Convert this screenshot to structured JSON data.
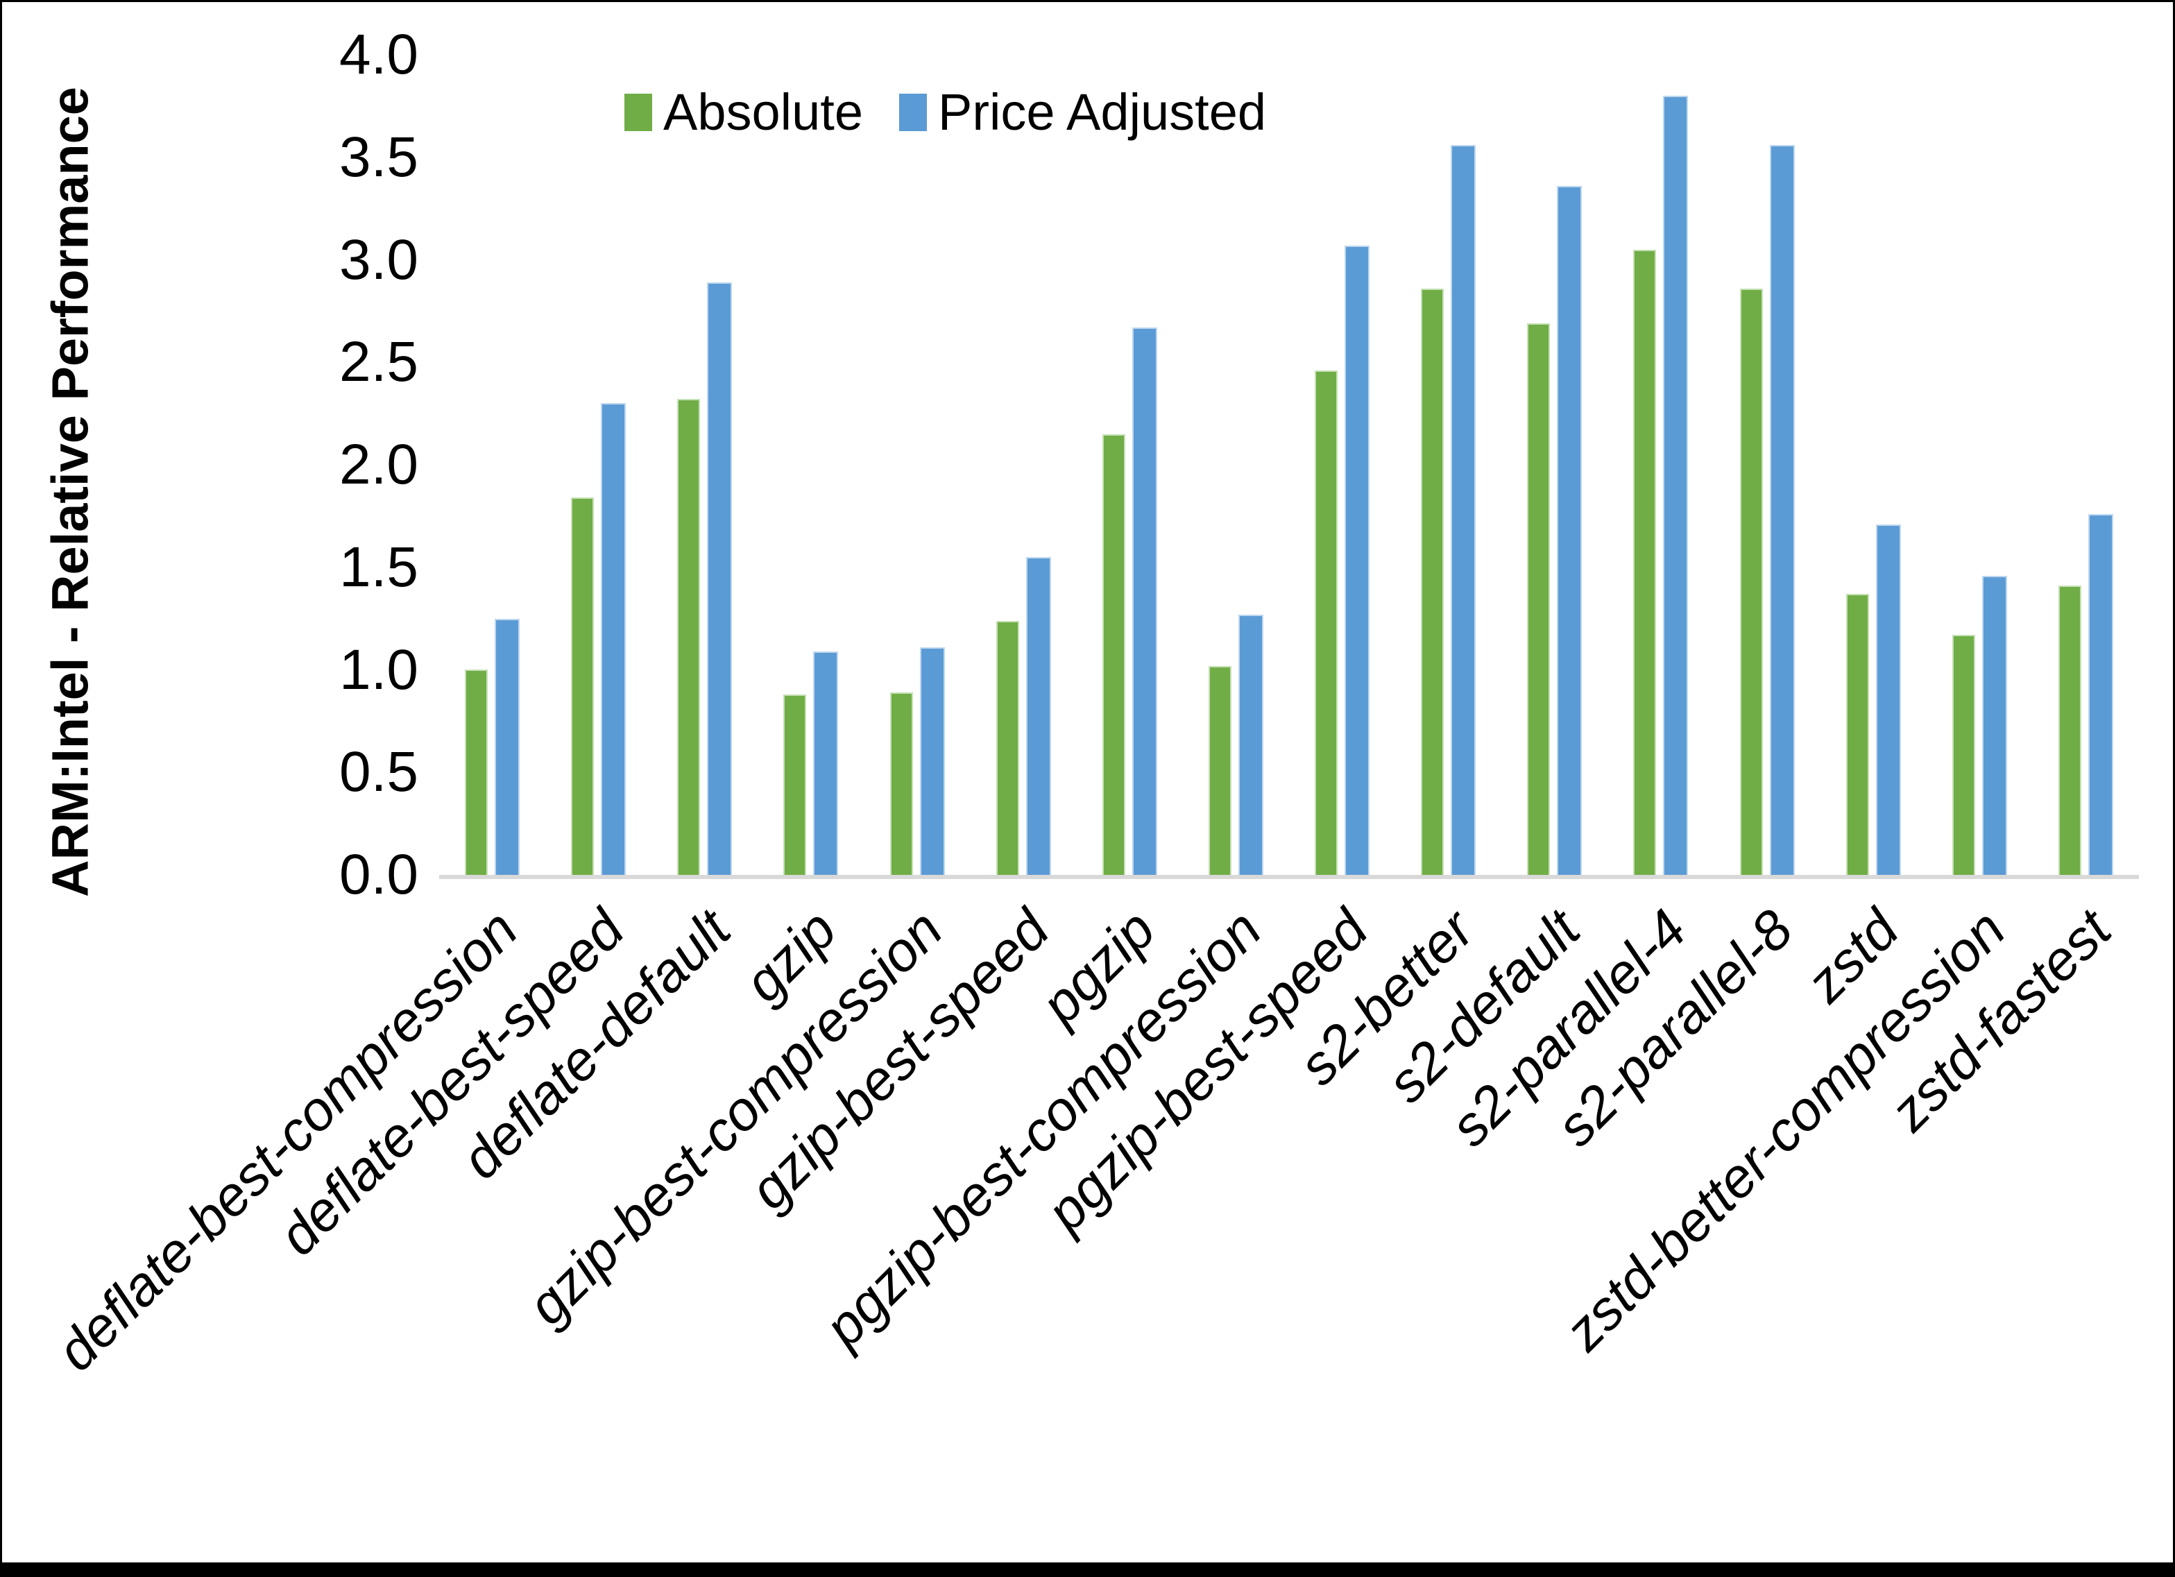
{
  "chart_data": {
    "type": "bar",
    "title": "",
    "xlabel": "",
    "ylabel": "ARM:Intel - Relative Performance",
    "ylim": [
      0.0,
      4.0
    ],
    "ytick_labels": [
      "0.0",
      "0.5",
      "1.0",
      "1.5",
      "2.0",
      "2.5",
      "3.0",
      "3.5",
      "4.0"
    ],
    "grid": false,
    "legend_position": "top-center",
    "axis_line_color": "#D9D9D9",
    "categories": [
      "deflate-best-compression",
      "deflate-best-speed",
      "deflate-default",
      "gzip",
      "gzip-best-compression",
      "gzip-best-speed",
      "pgzip",
      "pgzip-best-compression",
      "pgzip-best-speed",
      "s2-better",
      "s2-default",
      "s2-parallel-4",
      "s2-parallel-8",
      "zstd",
      "zstd-better-compression",
      "zstd-fastest"
    ],
    "series": [
      {
        "name": "Absolute",
        "color": "#70AD47",
        "edge_color": "#C5E0B4",
        "values": [
          1.0,
          1.84,
          2.32,
          0.88,
          0.89,
          1.24,
          2.15,
          1.02,
          2.46,
          2.86,
          2.69,
          3.05,
          2.86,
          1.37,
          1.17,
          1.41
        ]
      },
      {
        "name": "Price Adjusted",
        "color": "#5B9BD5",
        "edge_color": "#BDD7EE",
        "values": [
          1.25,
          2.3,
          2.89,
          1.09,
          1.11,
          1.55,
          2.67,
          1.27,
          3.07,
          3.56,
          3.36,
          3.8,
          3.56,
          1.71,
          1.46,
          1.76
        ]
      }
    ]
  }
}
